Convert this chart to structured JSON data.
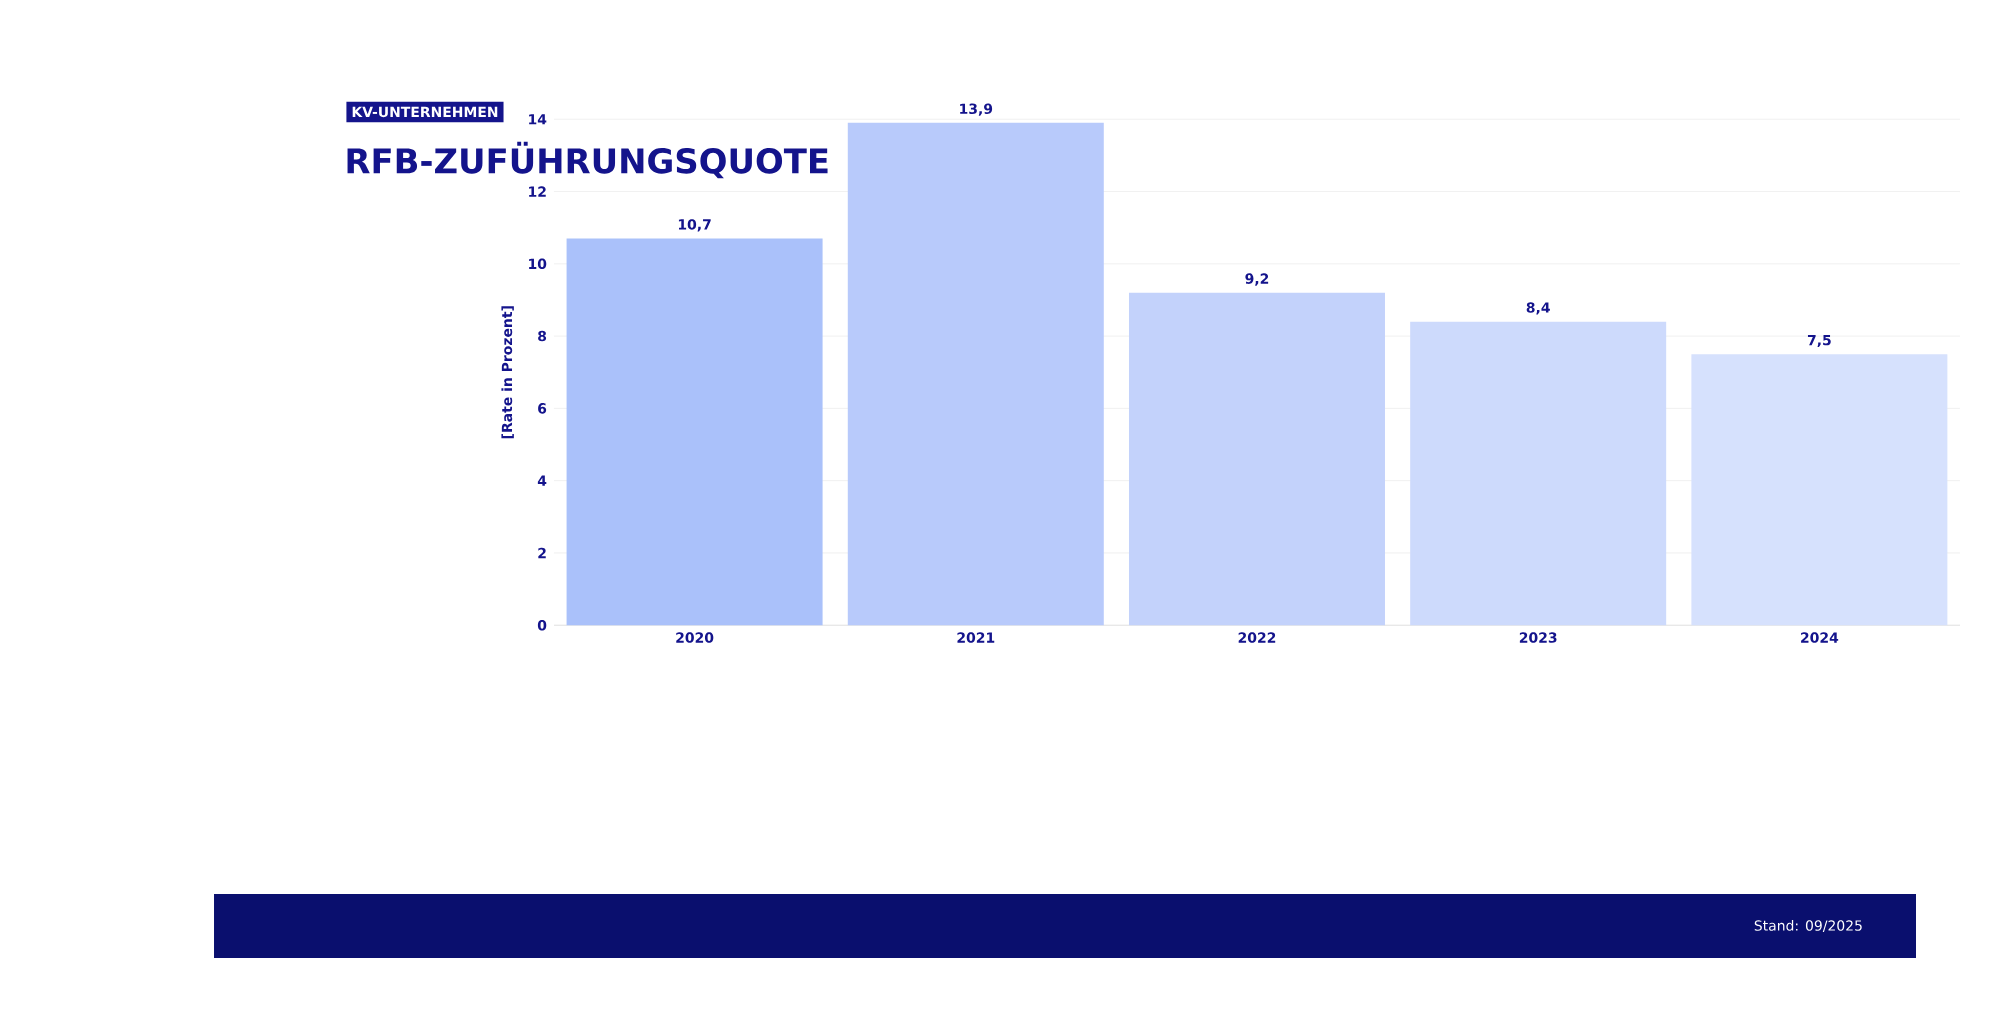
{
  "chart_data": {
    "type": "bar",
    "title": "RFB-ZUFÜHRUNGSQUOTE",
    "subtitle": "KV-UNTERNEHMEN",
    "ylabel": "[Rate in Prozent]",
    "categories": [
      "2020",
      "2021",
      "2022",
      "2023",
      "2024"
    ],
    "values": [
      10.7,
      13.9,
      9.2,
      8.4,
      7.5
    ],
    "value_labels": [
      "10,7",
      "13,9",
      "9,2",
      "8,4",
      "7,5"
    ],
    "colors": [
      "#aac1fa",
      "#b8cafb",
      "#c3d2fb",
      "#cddafc",
      "#d6e1fd"
    ],
    "ylim": [
      0,
      14
    ],
    "yticks": [
      0,
      2,
      4,
      6,
      8,
      10,
      12,
      14
    ],
    "grid": "y",
    "annotations": [
      "Stand: 09/2025"
    ]
  }
}
